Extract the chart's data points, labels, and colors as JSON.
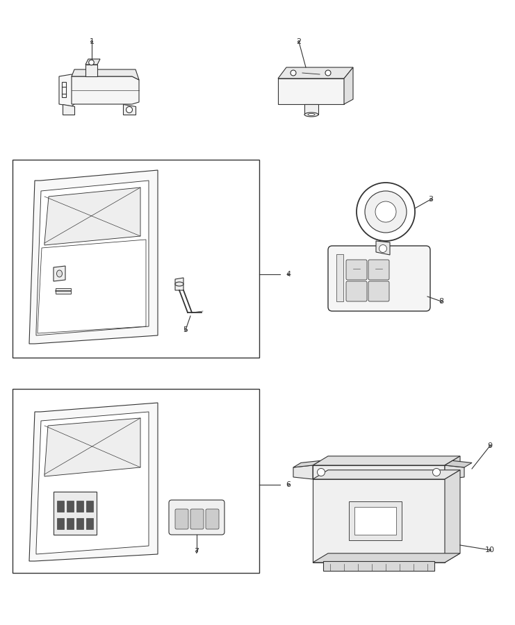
{
  "bg_color": "#ffffff",
  "lc": "#333333",
  "lc2": "#666666",
  "fig_width": 7.41,
  "fig_height": 9.0,
  "dpi": 100,
  "callout_r": 0.013,
  "callout_fs": 8,
  "lw": 0.8
}
